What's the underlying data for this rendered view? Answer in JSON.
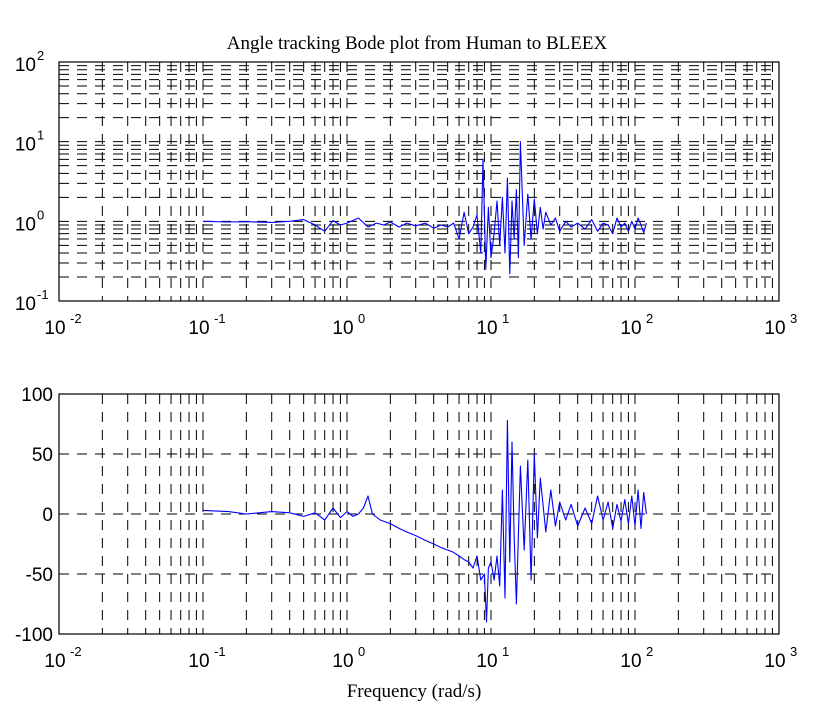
{
  "figure": {
    "title": "Angle tracking Bode plot from Human to BLEEX",
    "xlabel": "Frequency (rad/s)",
    "colors": {
      "trace": "#0000ff",
      "axes": "#000000",
      "grid": "#000000",
      "background": "#ffffff"
    }
  },
  "chart_data": [
    {
      "type": "line",
      "scale": {
        "x": "log",
        "y": "log"
      },
      "xlim": [
        0.01,
        1000
      ],
      "ylim": [
        0.1,
        100
      ],
      "grid": true,
      "xticks": [
        {
          "base": "10",
          "exp": "-2"
        },
        {
          "base": "10",
          "exp": "-1"
        },
        {
          "base": "10",
          "exp": "0"
        },
        {
          "base": "10",
          "exp": "1"
        },
        {
          "base": "10",
          "exp": "2"
        },
        {
          "base": "10",
          "exp": "3"
        }
      ],
      "yticks": [
        {
          "base": "10",
          "exp": "-1"
        },
        {
          "base": "10",
          "exp": "0"
        },
        {
          "base": "10",
          "exp": "1"
        },
        {
          "base": "10",
          "exp": "2"
        }
      ],
      "series": [
        {
          "x": [
            0.1,
            0.15,
            0.2,
            0.3,
            0.4,
            0.5,
            0.6,
            0.7,
            0.8,
            0.9,
            1.0,
            1.2,
            1.4,
            1.6,
            1.8,
            2.0,
            2.3,
            2.6,
            3.0,
            3.5,
            4.0,
            4.5,
            5.0,
            5.5,
            6.0,
            6.5,
            7.0,
            7.5,
            8.0,
            8.5,
            8.8,
            9.2,
            9.6,
            10.0,
            10.5,
            11.0,
            11.5,
            12.0,
            12.5,
            13.0,
            13.5,
            14.0,
            14.5,
            15.0,
            15.5,
            16.0,
            17.0,
            18.0,
            19.0,
            20.0,
            21.0,
            22.0,
            23.0,
            24.0,
            26.0,
            28.0,
            30.0,
            33.0,
            36.0,
            40.0,
            45.0,
            50.0,
            55.0,
            60.0,
            65.0,
            70.0,
            75.0,
            80.0,
            85.0,
            90.0,
            95.0,
            100.0,
            105.0,
            110.0,
            115.0,
            120.0
          ],
          "y": [
            1.0,
            0.98,
            0.99,
            0.97,
            1.0,
            1.05,
            0.9,
            0.75,
            1.02,
            0.9,
            0.95,
            1.1,
            0.85,
            0.95,
            0.9,
            0.98,
            0.85,
            0.95,
            0.88,
            0.95,
            0.82,
            0.9,
            0.85,
            0.95,
            0.6,
            1.3,
            0.7,
            0.85,
            1.2,
            0.4,
            6.0,
            0.25,
            1.5,
            0.35,
            0.7,
            1.8,
            0.5,
            2.0,
            0.4,
            3.5,
            0.22,
            1.8,
            0.6,
            2.5,
            0.35,
            10.0,
            0.5,
            2.2,
            0.6,
            1.9,
            0.7,
            1.5,
            0.8,
            1.3,
            0.9,
            1.1,
            0.75,
            1.0,
            0.85,
            0.95,
            0.8,
            1.05,
            0.75,
            0.95,
            0.9,
            0.7,
            1.1,
            0.85,
            0.95,
            0.75,
            1.0,
            0.8,
            1.1,
            0.9,
            0.72,
            0.95
          ]
        }
      ]
    },
    {
      "type": "line",
      "scale": {
        "x": "log",
        "y": "linear"
      },
      "xlim": [
        0.01,
        1000
      ],
      "ylim": [
        -100,
        100
      ],
      "grid": true,
      "xlabel": "Frequency (rad/s)",
      "xticks": [
        {
          "base": "10",
          "exp": "-2"
        },
        {
          "base": "10",
          "exp": "-1"
        },
        {
          "base": "10",
          "exp": "0"
        },
        {
          "base": "10",
          "exp": "1"
        },
        {
          "base": "10",
          "exp": "2"
        },
        {
          "base": "10",
          "exp": "3"
        }
      ],
      "yticks": [
        "-100",
        "-50",
        "0",
        "50",
        "100"
      ],
      "series": [
        {
          "x": [
            0.1,
            0.15,
            0.2,
            0.3,
            0.4,
            0.5,
            0.6,
            0.7,
            0.8,
            0.9,
            1.0,
            1.1,
            1.2,
            1.3,
            1.4,
            1.5,
            1.7,
            2.0,
            2.3,
            2.6,
            3.0,
            3.5,
            4.0,
            4.5,
            5.0,
            5.5,
            6.0,
            6.5,
            7.0,
            7.5,
            8.0,
            8.5,
            9.0,
            9.3,
            9.6,
            10.0,
            10.5,
            11.0,
            11.5,
            12.0,
            12.5,
            13.0,
            13.5,
            14.0,
            14.5,
            15.0,
            16.0,
            17.0,
            18.0,
            19.0,
            20.0,
            21.0,
            22.0,
            24.0,
            26.0,
            28.0,
            30.0,
            33.0,
            36.0,
            40.0,
            45.0,
            50.0,
            55.0,
            60.0,
            65.0,
            70.0,
            75.0,
            80.0,
            85.0,
            90.0,
            95.0,
            100.0,
            105.0,
            110.0,
            115.0,
            120.0
          ],
          "y": [
            3,
            2,
            0,
            2,
            1,
            -2,
            1,
            -5,
            5,
            -3,
            2,
            -2,
            0,
            5,
            15,
            0,
            -5,
            -8,
            -12,
            -15,
            -18,
            -22,
            -25,
            -28,
            -30,
            -32,
            -35,
            -38,
            -40,
            -45,
            -35,
            -55,
            -50,
            -90,
            -45,
            -40,
            -55,
            -35,
            -60,
            20,
            -70,
            78,
            -40,
            60,
            -20,
            -75,
            40,
            -30,
            45,
            -55,
            50,
            -20,
            30,
            -15,
            20,
            -10,
            10,
            -5,
            8,
            -10,
            5,
            -8,
            15,
            -5,
            10,
            -12,
            8,
            -6,
            12,
            -8,
            15,
            -10,
            20,
            -12,
            18,
            0
          ]
        }
      ]
    }
  ]
}
